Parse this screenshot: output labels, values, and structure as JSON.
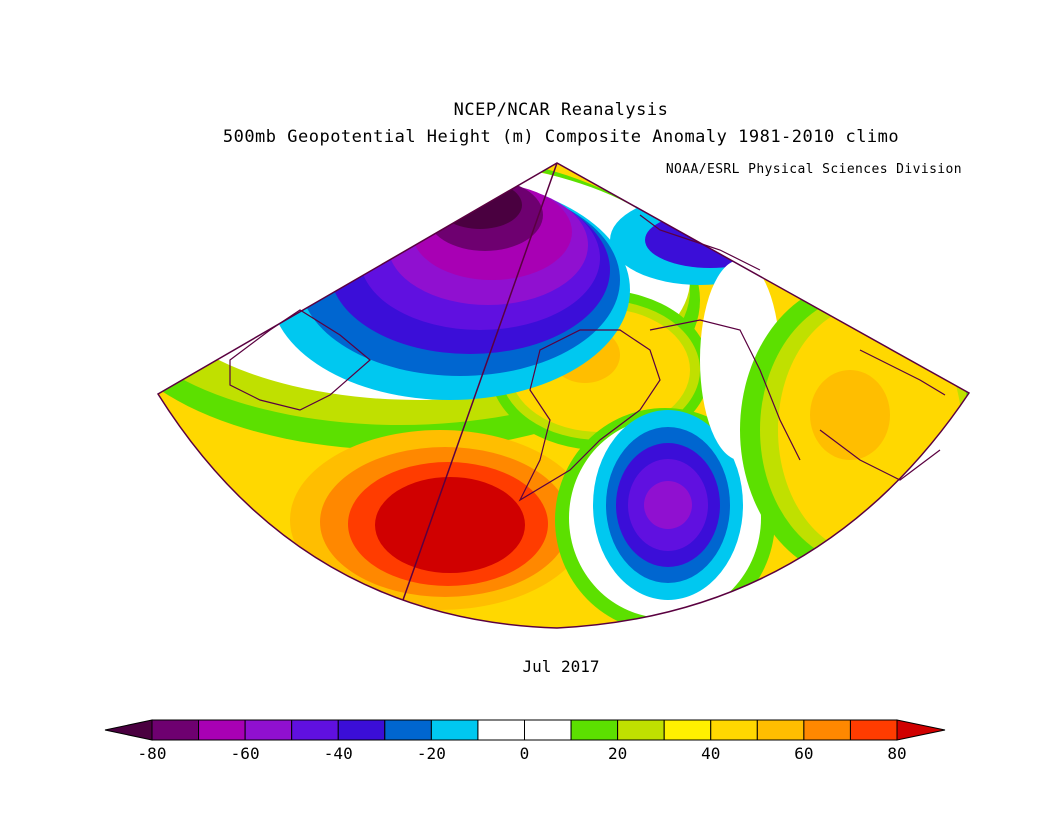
{
  "header": {
    "title": "NCEP/NCAR Reanalysis",
    "subtitle": "500mb Geopotential Height (m) Composite Anomaly 1981-2010 climo",
    "credit": "NOAA/ESRL Physical Sciences Division"
  },
  "period_label": "Jul 2017",
  "colorbar": {
    "min": -80,
    "max": 80,
    "step": 10,
    "tick_labels": [
      "-80",
      "-60",
      "-40",
      "-20",
      "0",
      "20",
      "40",
      "60",
      "80"
    ],
    "colors": {
      "below_min": "#4a0040",
      "-80": "#6e0070",
      "-70": "#a800b4",
      "-60": "#9010d0",
      "-50": "#6010e0",
      "-40": "#3b0ed8",
      "-30": "#0066d0",
      "-20": "#00c8f0",
      "-10": "#ffffff",
      "0": "#ffffff",
      "10": "#5ce000",
      "20": "#c0e000",
      "30": "#fff000",
      "40": "#ffd800",
      "50": "#ffbe00",
      "60": "#ff8800",
      "70": "#ff3c00",
      "above_max": "#d00000"
    }
  },
  "map_features": {
    "anomaly_centers": [
      {
        "name": "Bering Sea / Siberia low",
        "sign": "negative",
        "peak_approx": -80
      },
      {
        "name": "North Pacific high",
        "sign": "positive",
        "peak_approx": 80
      },
      {
        "name": "Gulf of Alaska low",
        "sign": "negative",
        "peak_approx": -60
      },
      {
        "name": "Alaska ridge",
        "sign": "positive",
        "peak_approx": 50
      },
      {
        "name": "Western Canada ridge",
        "sign": "positive",
        "peak_approx": 50
      }
    ]
  }
}
